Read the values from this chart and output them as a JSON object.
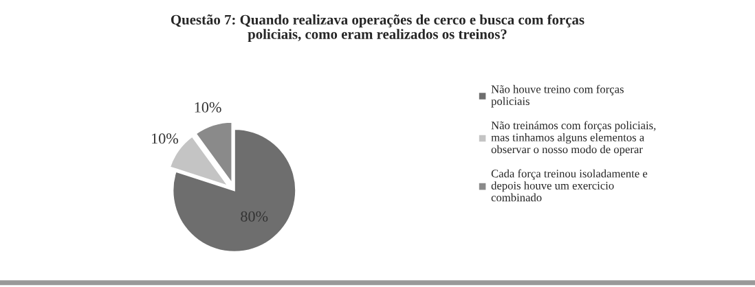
{
  "chart_data": {
    "type": "pie",
    "title": "Questão 7: Quando realizava operações de cerco e busca com forças\npoliciais, como eram realizados os treinos?",
    "categories": [
      "Não houve treino com forças\npoliciais",
      "Não treinámos com forças policiais,\nmas tinhamos alguns elementos a\nobservar o nosso modo de operar",
      "Cada força treinou isoladamente e\ndepois houve um exercicio\ncombinado"
    ],
    "values": [
      80,
      10,
      10
    ],
    "colors": [
      "#6e6e6e",
      "#c4c4c4",
      "#8a8a8a"
    ],
    "value_labels": [
      "80%",
      "10%",
      "10%"
    ],
    "legend": "right"
  }
}
